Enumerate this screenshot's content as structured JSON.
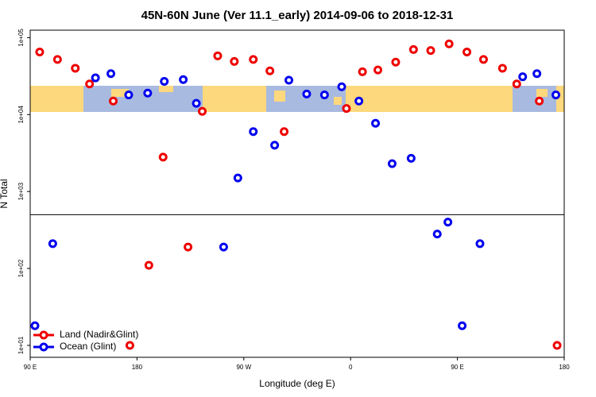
{
  "chart_data": {
    "type": "scatter",
    "title": "45N-60N June (Ver 11.1_early)   2014-09-06 to 2018-12-31",
    "xlabel": "Longitude (deg E)",
    "ylabel": "N Total",
    "log_y": true,
    "xlim": [
      90,
      540
    ],
    "xticks": [
      {
        "value": 90,
        "label": "90 E"
      },
      180,
      {
        "value": 270,
        "label": "90 W"
      },
      {
        "value": 360,
        "label": "0"
      },
      {
        "value": 450,
        "label": "90 E"
      },
      {
        "value": 540,
        "label": "180"
      }
    ],
    "ylim": [
      7,
      125000
    ],
    "yticks": [
      {
        "value": 10,
        "label": "1e+01"
      },
      {
        "value": 100,
        "label": "1e+02"
      },
      {
        "value": 1000,
        "label": "1e+03"
      },
      {
        "value": 10000,
        "label": "1e+04"
      },
      {
        "value": 100000,
        "label": "1e+05"
      }
    ],
    "hline": 500,
    "legend": "bottom-left",
    "series": [
      {
        "name": "Land (Nadir&Glint)",
        "color": "#ee0000",
        "x": [
          98,
          113,
          128,
          140,
          160,
          174,
          190,
          202,
          223,
          235,
          248,
          262,
          278,
          292,
          304,
          356.5,
          370,
          383,
          398,
          413,
          427.5,
          443,
          458,
          472,
          488,
          500,
          519,
          534
        ],
        "values": [
          65000,
          52000,
          40000,
          25000,
          15000,
          10,
          110,
          2800,
          190,
          11000,
          58000,
          49000,
          52000,
          37000,
          6000,
          12000,
          36000,
          38000,
          48000,
          70000,
          68000,
          83000,
          65000,
          52000,
          40000,
          25000,
          15000,
          10
        ]
      },
      {
        "name": "Ocean (Glint)",
        "color": "#0000ee",
        "x": [
          94,
          109,
          145,
          158,
          173,
          189,
          203,
          219,
          230,
          253,
          265,
          278,
          296,
          308,
          323,
          338,
          352.5,
          367,
          381,
          395,
          411,
          433,
          442,
          454,
          469,
          505,
          517,
          533
        ],
        "values": [
          18,
          210,
          30000,
          34000,
          18000,
          19000,
          27000,
          28500,
          14000,
          190,
          1500,
          6000,
          4000,
          28000,
          18500,
          18000,
          23000,
          15000,
          7700,
          2300,
          2700,
          280,
          400,
          18,
          210,
          31000,
          34000,
          18000
        ]
      }
    ]
  }
}
